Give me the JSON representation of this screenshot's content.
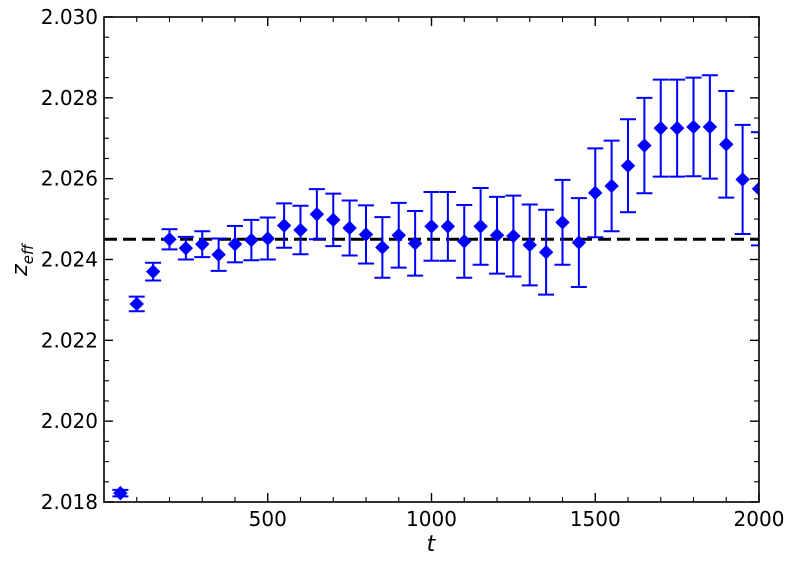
{
  "chart_data": {
    "type": "scatter",
    "title": "",
    "xlabel": "t",
    "ylabel": "z",
    "ylabel_subscript": "eff",
    "xlim": [
      0,
      2000
    ],
    "ylim": [
      2.018,
      2.03
    ],
    "xticks": [
      {
        "value": 500,
        "label": "500"
      },
      {
        "value": 1000,
        "label": "1000"
      },
      {
        "value": 1500,
        "label": "1500"
      },
      {
        "value": 2000,
        "label": "2000"
      }
    ],
    "yticks": [
      {
        "value": 2.018,
        "label": "2.018"
      },
      {
        "value": 2.02,
        "label": "2.020"
      },
      {
        "value": 2.022,
        "label": "2.022"
      },
      {
        "value": 2.024,
        "label": "2.024"
      },
      {
        "value": 2.026,
        "label": "2.026"
      },
      {
        "value": 2.028,
        "label": "2.028"
      },
      {
        "value": 2.03,
        "label": "2.030"
      }
    ],
    "x_minor_step": 100,
    "y_minor_step": 0.0005,
    "grid": false,
    "legend": "none",
    "marker": "diamond",
    "series_color": "#0000ff",
    "reference_line": {
      "y": 2.0245,
      "style": "dashed",
      "color": "#000000"
    },
    "points": [
      {
        "x": 50,
        "y": 2.01822,
        "err": 8e-05
      },
      {
        "x": 100,
        "y": 2.0229,
        "err": 0.00018
      },
      {
        "x": 150,
        "y": 2.0237,
        "err": 0.00022
      },
      {
        "x": 200,
        "y": 2.0245,
        "err": 0.00025
      },
      {
        "x": 250,
        "y": 2.02428,
        "err": 0.00028
      },
      {
        "x": 300,
        "y": 2.02438,
        "err": 0.00032
      },
      {
        "x": 350,
        "y": 2.02412,
        "err": 0.0004
      },
      {
        "x": 400,
        "y": 2.02438,
        "err": 0.00045
      },
      {
        "x": 450,
        "y": 2.02448,
        "err": 0.0005
      },
      {
        "x": 500,
        "y": 2.02452,
        "err": 0.00052
      },
      {
        "x": 550,
        "y": 2.02484,
        "err": 0.00055
      },
      {
        "x": 600,
        "y": 2.02473,
        "err": 0.0006
      },
      {
        "x": 650,
        "y": 2.02512,
        "err": 0.00062
      },
      {
        "x": 700,
        "y": 2.02498,
        "err": 0.00065
      },
      {
        "x": 750,
        "y": 2.02478,
        "err": 0.00068
      },
      {
        "x": 800,
        "y": 2.02462,
        "err": 0.00072
      },
      {
        "x": 850,
        "y": 2.0243,
        "err": 0.00075
      },
      {
        "x": 900,
        "y": 2.0246,
        "err": 0.0008
      },
      {
        "x": 950,
        "y": 2.0244,
        "err": 0.0008
      },
      {
        "x": 1000,
        "y": 2.02482,
        "err": 0.00085
      },
      {
        "x": 1050,
        "y": 2.02482,
        "err": 0.00085
      },
      {
        "x": 1100,
        "y": 2.02445,
        "err": 0.0009
      },
      {
        "x": 1150,
        "y": 2.02482,
        "err": 0.00095
      },
      {
        "x": 1200,
        "y": 2.0246,
        "err": 0.00095
      },
      {
        "x": 1250,
        "y": 2.02458,
        "err": 0.001
      },
      {
        "x": 1300,
        "y": 2.02436,
        "err": 0.001
      },
      {
        "x": 1350,
        "y": 2.02418,
        "err": 0.00105
      },
      {
        "x": 1400,
        "y": 2.02492,
        "err": 0.00105
      },
      {
        "x": 1450,
        "y": 2.02442,
        "err": 0.0011
      },
      {
        "x": 1500,
        "y": 2.02565,
        "err": 0.0011
      },
      {
        "x": 1550,
        "y": 2.02582,
        "err": 0.00112
      },
      {
        "x": 1600,
        "y": 2.02632,
        "err": 0.00115
      },
      {
        "x": 1650,
        "y": 2.02682,
        "err": 0.00118
      },
      {
        "x": 1700,
        "y": 2.02725,
        "err": 0.0012
      },
      {
        "x": 1750,
        "y": 2.02725,
        "err": 0.0012
      },
      {
        "x": 1800,
        "y": 2.02728,
        "err": 0.00122
      },
      {
        "x": 1850,
        "y": 2.02728,
        "err": 0.00128
      },
      {
        "x": 1900,
        "y": 2.02685,
        "err": 0.00132
      },
      {
        "x": 1950,
        "y": 2.02598,
        "err": 0.00135
      },
      {
        "x": 2000,
        "y": 2.02575,
        "err": 0.0014
      }
    ]
  }
}
